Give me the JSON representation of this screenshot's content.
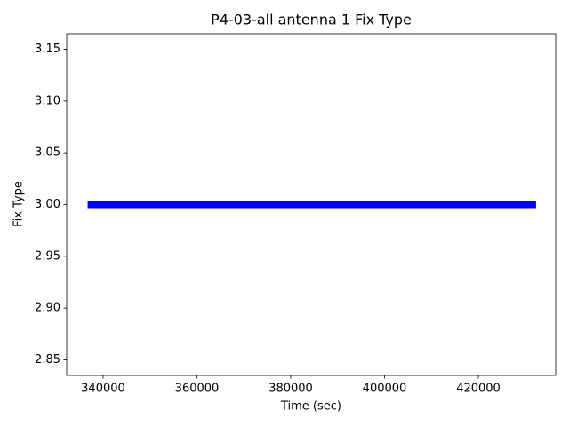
{
  "chart_data": {
    "type": "line",
    "title": "P4-03-all antenna 1 Fix Type",
    "x_label": "Time (sec)",
    "y_label": "Fix Type",
    "x": [
      336700,
      432300
    ],
    "values": [
      3,
      3
    ],
    "color": "#0000ff",
    "xlim": [
      332230,
      436490
    ],
    "xticks": [
      340000,
      360000,
      380000,
      400000,
      420000
    ],
    "ylim": [
      2.835,
      3.165
    ],
    "yticks": [
      2.85,
      {
        "value": 2.9,
        "label": "2.90"
      },
      2.95,
      {
        "value": 3,
        "label": "3.00"
      },
      3.05,
      {
        "value": 3.1,
        "label": "3.10"
      },
      3.15
    ],
    "grid": false
  }
}
